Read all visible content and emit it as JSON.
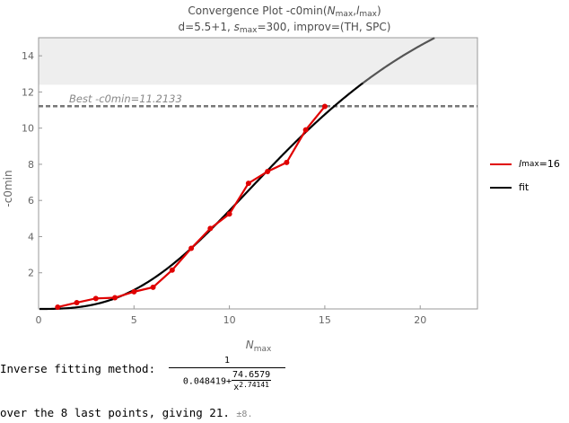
{
  "colors": {
    "data_series": "#e00000",
    "fit_curve": "#000000",
    "fit_extrapolated": "#555555",
    "best_line": "#777777",
    "shaded_band": "#eeeeee"
  },
  "chart_data": {
    "type": "line",
    "title_parts": {
      "prefix": "Convergence Plot -c0min(",
      "var1": "N",
      "var1_sub": "max",
      "sep": ",",
      "var2": "l",
      "var2_sub": "max",
      "suffix": ")"
    },
    "subtitle_parts": {
      "prefix": "d=5.5+1, ",
      "s_var": "s",
      "s_sub": "max",
      "suffix": "=300, improv=(TH, SPC)"
    },
    "xlabel": "N",
    "xlabel_sub": "max",
    "ylabel": "-c0min",
    "xlim": [
      0,
      23
    ],
    "ylim": [
      0,
      15
    ],
    "xticks": [
      "0",
      "5",
      "10",
      "15",
      "20"
    ],
    "yticks": [
      "2",
      "4",
      "6",
      "8",
      "10",
      "12",
      "14"
    ],
    "grid": false,
    "shaded_band": [
      12.4,
      15
    ],
    "best_value": 11.2133,
    "best_label": "Best -c0min=11.2133",
    "series": [
      {
        "name": "lmax=16",
        "x": [
          1,
          2,
          3,
          4,
          5,
          6,
          7,
          8,
          9,
          10,
          11,
          12,
          13,
          14,
          15
        ],
        "y": [
          0.1,
          0.35,
          0.58,
          0.62,
          0.95,
          1.2,
          2.15,
          3.35,
          4.45,
          5.25,
          6.95,
          7.6,
          8.1,
          9.9,
          11.2
        ]
      }
    ],
    "fit": {
      "name": "fit",
      "a": 0.048419,
      "b": 74.6579,
      "p": 2.74141,
      "solid_until_x": 17,
      "x_max": 23
    },
    "legend_position": "right"
  },
  "legend": {
    "series_label": "l",
    "series_sub": "max",
    "series_value": "=16",
    "fit_label": "fit"
  },
  "footer": {
    "method_label": "Inverse fitting method:",
    "frac_numerator": "1",
    "den_constant": "0.048419",
    "den_plus": "+",
    "den_inner_num": "74.6579",
    "den_inner_base": "x",
    "den_inner_exp": "2.74141",
    "summary_text": "over the 8 last points, giving 21.",
    "summary_pm": "±8."
  }
}
